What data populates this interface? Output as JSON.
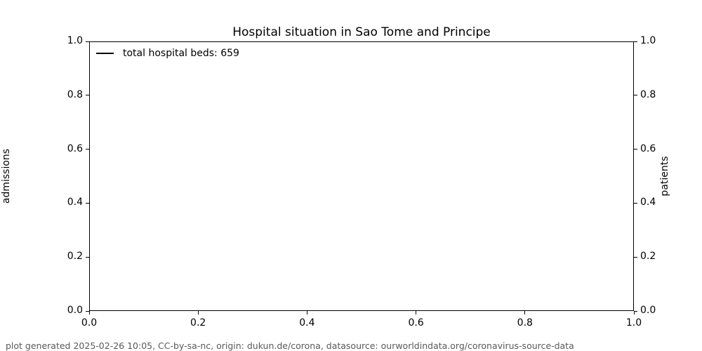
{
  "chart_data": {
    "type": "line",
    "title": "Hospital situation in Sao Tome and Principe",
    "xlabel": "",
    "ylabel_left": "admissions",
    "ylabel_right": "patients",
    "xlim": [
      0.0,
      1.0
    ],
    "ylim_left": [
      0.0,
      1.0
    ],
    "ylim_right": [
      0.0,
      1.0
    ],
    "x_ticks": [
      0.0,
      0.2,
      0.4,
      0.6,
      0.8,
      1.0
    ],
    "y_ticks_left": [
      0.0,
      0.2,
      0.4,
      0.6,
      0.8,
      1.0
    ],
    "y_ticks_right": [
      0.0,
      0.2,
      0.4,
      0.6,
      0.8,
      1.0
    ],
    "tick_label_format": "one-decimal",
    "grid": false,
    "legend": {
      "position": "upper-left",
      "frame": false,
      "entries": [
        {
          "label": "total hospital beds: 659",
          "color": "#000000",
          "style": "line"
        }
      ]
    },
    "series": [
      {
        "name": "total hospital beds: 659",
        "color": "#000000",
        "x": [],
        "values": [],
        "note": "no data points visible in plot area"
      }
    ]
  },
  "footer": {
    "note": "plot generated 2025-02-26 10:05, CC-by-sa-nc, origin: dukun.de/corona, datasource: ourworldindata.org/coronavirus-source-data"
  },
  "colors": {
    "background": "#ffffff",
    "axis": "#000000",
    "text": "#000000",
    "footer_text": "#595959",
    "legend_line": "#000000"
  }
}
